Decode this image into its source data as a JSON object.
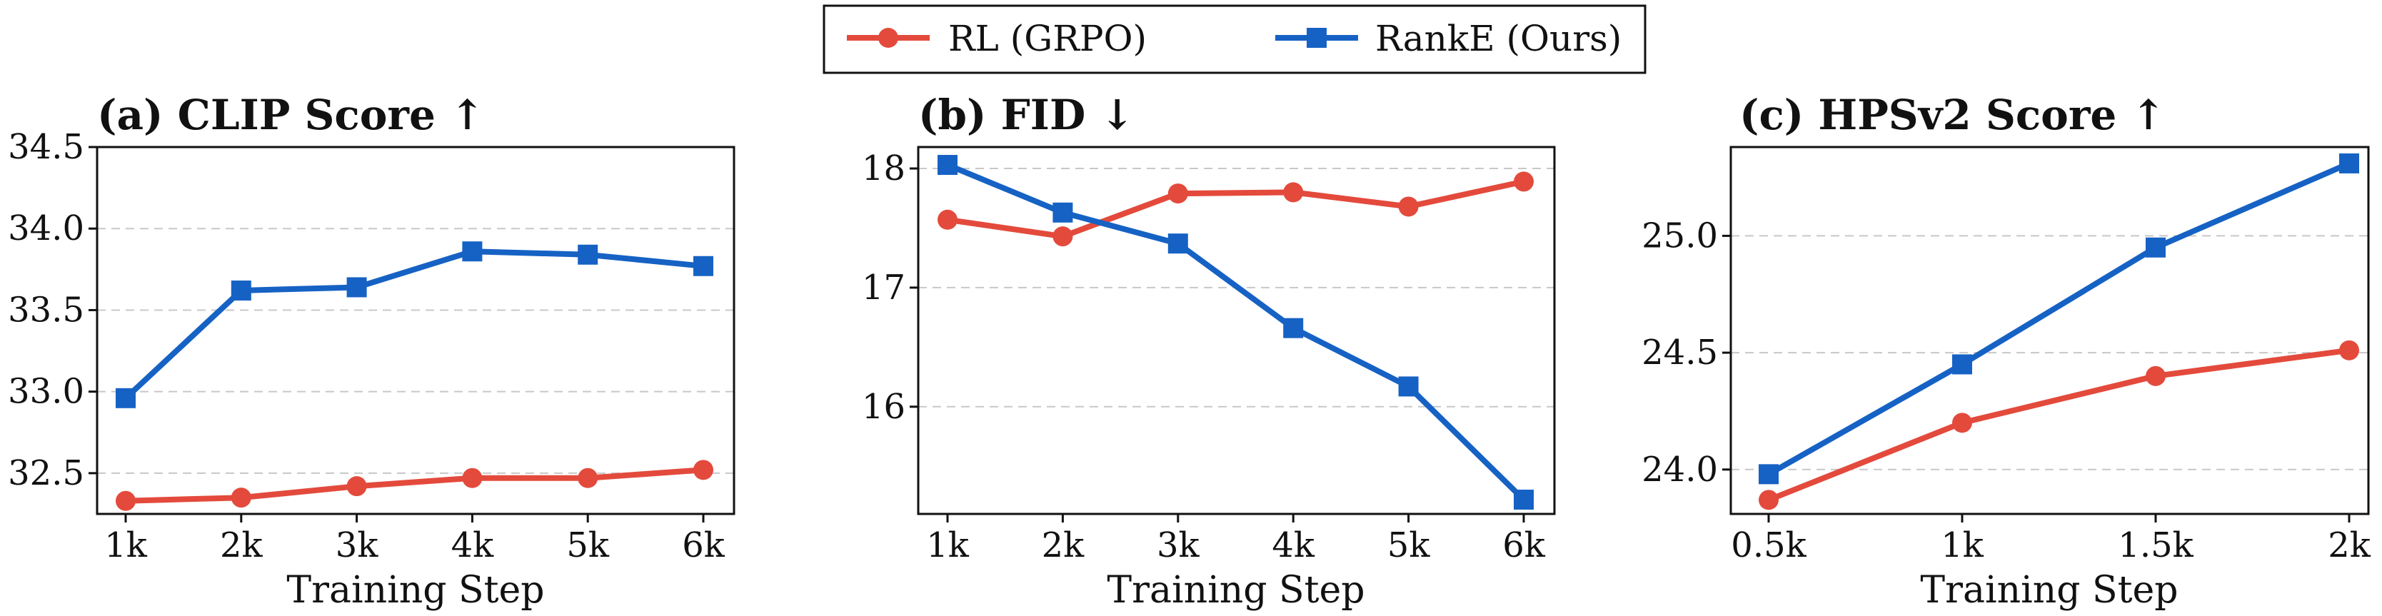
{
  "legend": {
    "entries": [
      {
        "label": "RL (GRPO)",
        "color": "#e34a3c",
        "marker": "circle"
      },
      {
        "label": "RankE (Ours)",
        "color": "#1662c4",
        "marker": "square"
      }
    ]
  },
  "chart_data": [
    {
      "type": "line",
      "title": "(a) CLIP Score ↑",
      "xlabel": "Training Step",
      "ylabel": "",
      "categories": [
        "1k",
        "2k",
        "3k",
        "4k",
        "5k",
        "6k"
      ],
      "ylim": [
        32.25,
        34.5
      ],
      "yticks": [
        32.5,
        33.0,
        33.5,
        34.0,
        34.5
      ],
      "ytick_labels": [
        "32.5",
        "33.0",
        "33.5",
        "34.0",
        "34.5"
      ],
      "grid": "horizontal dashed",
      "series": [
        {
          "name": "RL (GRPO)",
          "color": "#e34a3c",
          "marker": "circle",
          "values": [
            32.33,
            32.35,
            32.42,
            32.47,
            32.47,
            32.52
          ]
        },
        {
          "name": "RankE (Ours)",
          "color": "#1662c4",
          "marker": "square",
          "values": [
            32.96,
            33.62,
            33.64,
            33.86,
            33.84,
            33.77
          ]
        }
      ]
    },
    {
      "type": "line",
      "title": "(b) FID ↓",
      "xlabel": "Training Step",
      "ylabel": "",
      "categories": [
        "1k",
        "2k",
        "3k",
        "4k",
        "5k",
        "6k"
      ],
      "ylim": [
        15.1,
        18.18
      ],
      "yticks": [
        16,
        17,
        18
      ],
      "ytick_labels": [
        "16",
        "17",
        "18"
      ],
      "grid": "horizontal dashed",
      "series": [
        {
          "name": "RL (GRPO)",
          "color": "#e34a3c",
          "marker": "circle",
          "values": [
            17.57,
            17.43,
            17.79,
            17.8,
            17.68,
            17.89
          ]
        },
        {
          "name": "RankE (Ours)",
          "color": "#1662c4",
          "marker": "square",
          "values": [
            18.03,
            17.63,
            17.37,
            16.66,
            16.17,
            15.22
          ]
        }
      ]
    },
    {
      "type": "line",
      "title": "(c) HPSv2 Score ↑",
      "xlabel": "Training Step",
      "ylabel": "",
      "categories": [
        "0.5k",
        "1k",
        "1.5k",
        "2k"
      ],
      "ylim": [
        23.81,
        25.38
      ],
      "yticks": [
        24.0,
        24.5,
        25.0
      ],
      "ytick_labels": [
        "24.0",
        "24.5",
        "25.0"
      ],
      "grid": "horizontal dashed",
      "series": [
        {
          "name": "RL (GRPO)",
          "color": "#e34a3c",
          "marker": "circle",
          "values": [
            23.87,
            24.2,
            24.4,
            24.51
          ]
        },
        {
          "name": "RankE (Ours)",
          "color": "#1662c4",
          "marker": "square",
          "values": [
            23.98,
            24.45,
            24.95,
            25.31
          ]
        }
      ]
    }
  ]
}
